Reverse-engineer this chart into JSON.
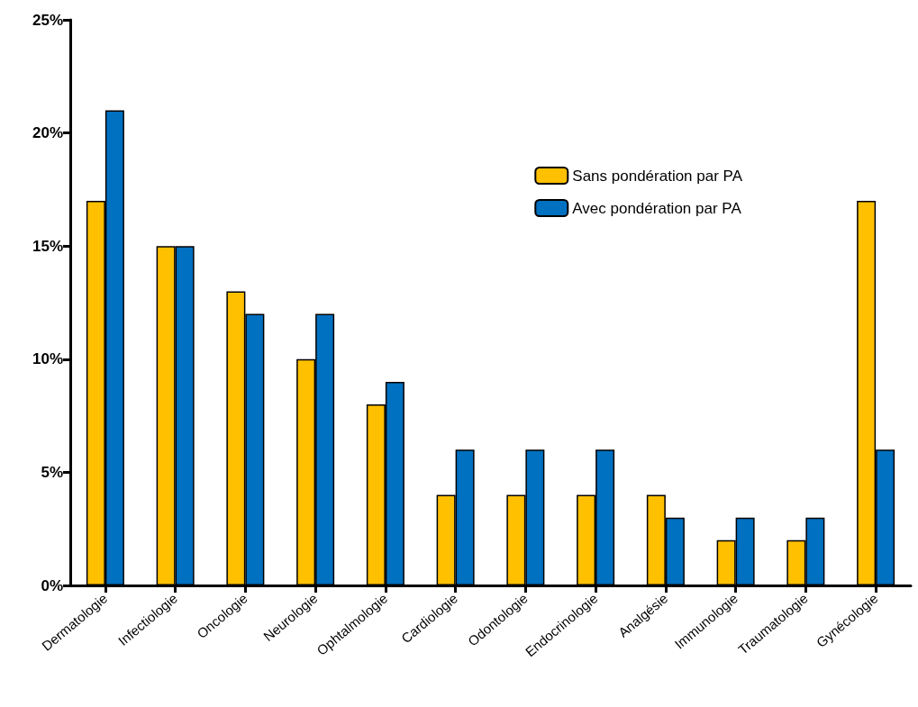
{
  "chart_data": {
    "type": "bar",
    "categories": [
      "Dermatologie",
      "Infectiologie",
      "Oncologie",
      "Neurologie",
      "Ophtalmologie",
      "Cardiologie",
      "Odontologie",
      "Endocrinologie",
      "Analgésie",
      "Immunologie",
      "Traumatologie",
      "Gynécologie"
    ],
    "series": [
      {
        "name": "Sans pondération par PA",
        "color": "#ffc000",
        "values": [
          17,
          15,
          13,
          10,
          8,
          4,
          4,
          4,
          4,
          2,
          2,
          17
        ]
      },
      {
        "name": "Avec pondération par PA",
        "color": "#0070c0",
        "values": [
          21,
          15,
          12,
          12,
          9,
          6,
          6,
          6,
          3,
          3,
          3,
          6
        ]
      }
    ],
    "ylim": [
      0,
      25
    ],
    "yticks": [
      {
        "value": 0,
        "label": "0%"
      },
      {
        "value": 5,
        "label": "5%"
      },
      {
        "value": 10,
        "label": "10%"
      },
      {
        "value": 15,
        "label": "15%"
      },
      {
        "value": 20,
        "label": "20%"
      },
      {
        "value": 25,
        "label": "25%"
      }
    ],
    "grid": false,
    "legend": "top right"
  }
}
